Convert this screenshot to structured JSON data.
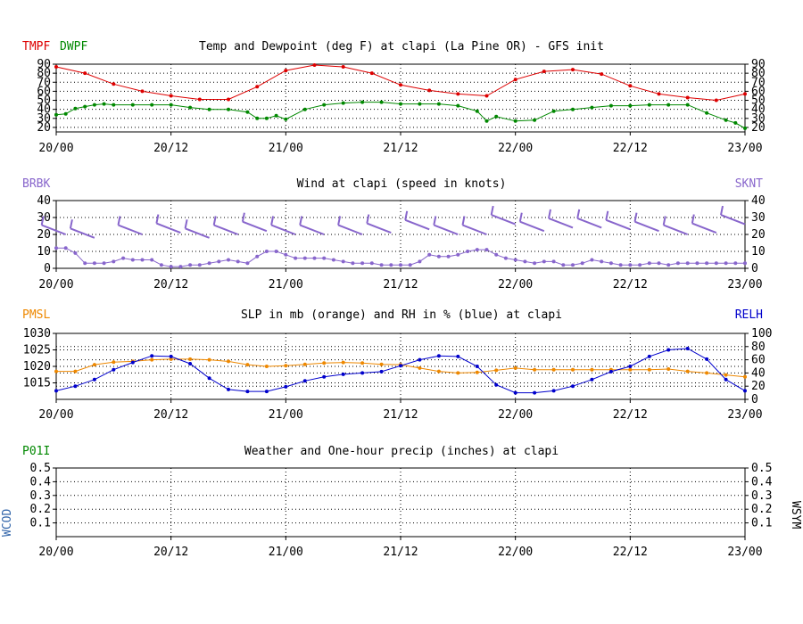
{
  "chart_data": [
    {
      "type": "line",
      "title": "Temp and Dewpoint (deg F) at clapi (La Pine OR) - GFS init",
      "left_labels": [
        {
          "text": "TMPF",
          "color": "#dd0000"
        },
        {
          "text": "DWPF",
          "color": "#008800"
        }
      ],
      "right_label": "",
      "ylim": [
        15,
        90
      ],
      "yticks": [
        20,
        30,
        40,
        50,
        60,
        70,
        80,
        90
      ],
      "yticks_right": [
        20,
        30,
        40,
        50,
        60,
        70,
        80,
        90
      ],
      "xlim": [
        0,
        72
      ],
      "xticks": [
        "20/00",
        "20/12",
        "21/00",
        "21/12",
        "22/00",
        "22/12",
        "23/00"
      ],
      "grid": true,
      "series": [
        {
          "name": "TMPF",
          "color": "#dd0000",
          "marker": "dot",
          "x": [
            0,
            3,
            6,
            9,
            12,
            15,
            18,
            21,
            24,
            27,
            30,
            33,
            36,
            39,
            42,
            45,
            48,
            51,
            54,
            57,
            60,
            63,
            66,
            69,
            72
          ],
          "y": [
            87,
            80,
            68,
            60,
            55,
            51,
            51,
            65,
            83,
            89,
            87,
            80,
            67,
            61,
            57,
            55,
            73,
            82,
            84,
            79,
            66,
            57,
            53,
            50,
            57
          ]
        },
        {
          "name": "DWPF",
          "color": "#008800",
          "marker": "dot",
          "x": [
            0,
            1,
            2,
            3,
            4,
            5,
            6,
            8,
            10,
            12,
            14,
            16,
            18,
            20,
            21,
            22,
            23,
            24,
            26,
            28,
            30,
            32,
            34,
            36,
            38,
            40,
            42,
            44,
            45,
            46,
            48,
            50,
            52,
            54,
            56,
            58,
            60,
            62,
            64,
            66,
            68,
            70,
            71,
            72
          ],
          "y": [
            34,
            35,
            41,
            43,
            45,
            46,
            45,
            45,
            45,
            45,
            42,
            40,
            40,
            37,
            30,
            30,
            33,
            29,
            40,
            45,
            47,
            48,
            48,
            46,
            46,
            46,
            44,
            38,
            27,
            32,
            27,
            28,
            38,
            40,
            42,
            44,
            44,
            45,
            45,
            45,
            36,
            28,
            25,
            19
          ]
        }
      ]
    },
    {
      "type": "line",
      "title": "Wind at  clapi (speed in knots)",
      "left_labels": [
        {
          "text": "BRBK",
          "color": "#8866cc"
        }
      ],
      "right_label": "SKNT",
      "right_color": "#8866cc",
      "ylim": [
        0,
        40
      ],
      "yticks": [
        0,
        10,
        20,
        30,
        40
      ],
      "yticks_right": [
        0,
        10,
        20,
        30,
        40
      ],
      "xlim": [
        0,
        72
      ],
      "xticks": [
        "20/00",
        "20/12",
        "21/00",
        "21/12",
        "22/00",
        "22/12",
        "23/00"
      ],
      "grid": true,
      "series": [
        {
          "name": "SKNT",
          "color": "#8866cc",
          "marker": "dot",
          "x": [
            0,
            1,
            2,
            3,
            4,
            5,
            6,
            7,
            8,
            9,
            10,
            11,
            12,
            13,
            14,
            15,
            16,
            17,
            18,
            19,
            20,
            21,
            22,
            23,
            24,
            25,
            26,
            27,
            28,
            29,
            30,
            31,
            32,
            33,
            34,
            35,
            36,
            37,
            38,
            39,
            40,
            41,
            42,
            43,
            44,
            45,
            46,
            47,
            48,
            49,
            50,
            51,
            52,
            53,
            54,
            55,
            56,
            57,
            58,
            59,
            60,
            61,
            62,
            63,
            64,
            65,
            66,
            67,
            68,
            69,
            70,
            71,
            72
          ],
          "y": [
            12,
            12,
            9,
            3,
            3,
            3,
            4,
            6,
            5,
            5,
            5,
            2,
            1,
            1,
            2,
            2,
            3,
            4,
            5,
            4,
            3,
            7,
            10,
            10,
            8,
            6,
            6,
            6,
            6,
            5,
            4,
            3,
            3,
            3,
            2,
            2,
            2,
            2,
            4,
            8,
            7,
            7,
            8,
            10,
            11,
            11,
            8,
            6,
            5,
            4,
            3,
            4,
            4,
            2,
            2,
            3,
            5,
            4,
            3,
            2,
            2,
            2,
            3,
            3,
            2,
            3,
            3,
            3,
            3,
            3,
            3,
            3,
            3
          ]
        }
      ],
      "barbs": {
        "x": [
          1,
          4,
          9,
          13,
          16,
          19,
          22,
          25,
          28,
          32,
          35,
          39,
          42,
          45,
          48,
          51,
          54,
          57,
          60,
          63,
          66,
          69,
          72
        ],
        "speed": [
          20,
          18,
          20,
          21,
          18,
          20,
          22,
          20,
          20,
          20,
          21,
          23,
          20,
          20,
          26,
          22,
          24,
          24,
          23,
          22,
          20,
          21,
          26
        ]
      }
    },
    {
      "type": "line",
      "title": "SLP in mb (orange) and RH in % (blue) at  clapi",
      "left_labels": [
        {
          "text": "PMSL",
          "color": "#ee8800"
        }
      ],
      "right_label": "RELH",
      "right_color": "#0000cc",
      "ylim": [
        1010,
        1030
      ],
      "yticks": [
        1015,
        1020,
        1025,
        1030
      ],
      "ylim_right": [
        0,
        100
      ],
      "yticks_right": [
        0,
        20,
        40,
        60,
        80,
        100
      ],
      "xlim": [
        0,
        72
      ],
      "xticks": [
        "20/00",
        "20/12",
        "21/00",
        "21/12",
        "22/00",
        "22/12",
        "23/00"
      ],
      "grid": true,
      "series": [
        {
          "name": "PMSL",
          "color": "#ee8800",
          "marker": "dot",
          "axis": "left",
          "x": [
            0,
            2,
            4,
            6,
            8,
            10,
            12,
            14,
            16,
            18,
            20,
            22,
            24,
            26,
            28,
            30,
            32,
            34,
            36,
            38,
            40,
            42,
            44,
            46,
            48,
            50,
            52,
            54,
            56,
            58,
            60,
            62,
            64,
            66,
            68,
            70,
            72
          ],
          "y": [
            1018.5,
            1018.5,
            1020.5,
            1021.3,
            1021.5,
            1022,
            1022.2,
            1022.2,
            1022,
            1021.5,
            1020.5,
            1020,
            1020.2,
            1020.6,
            1021,
            1021.2,
            1021,
            1020.6,
            1020.5,
            1019.5,
            1018.5,
            1018,
            1018.2,
            1018.8,
            1019.5,
            1019,
            1019,
            1019,
            1019,
            1019,
            1019,
            1019,
            1019.2,
            1018.5,
            1018,
            1017.4,
            1016.8
          ]
        },
        {
          "name": "RELH",
          "color": "#0000cc",
          "marker": "dot",
          "axis": "right",
          "x": [
            0,
            2,
            4,
            6,
            8,
            10,
            12,
            14,
            16,
            18,
            20,
            22,
            24,
            26,
            28,
            30,
            32,
            34,
            36,
            38,
            40,
            42,
            44,
            46,
            48,
            50,
            52,
            54,
            56,
            58,
            60,
            62,
            64,
            66,
            68,
            70,
            72
          ],
          "y": [
            13,
            20,
            30,
            45,
            56,
            66,
            65,
            54,
            32,
            15,
            12,
            12,
            19,
            28,
            34,
            38,
            40,
            42,
            51,
            60,
            66,
            65,
            50,
            22,
            10,
            10,
            13,
            20,
            30,
            42,
            50,
            65,
            75,
            77,
            61,
            30,
            13
          ]
        }
      ]
    },
    {
      "type": "line",
      "title": "Weather and One-hour precip (inches) at  clapi",
      "left_labels": [
        {
          "text": "P01I",
          "color": "#008800"
        }
      ],
      "right_label": "",
      "side_left": "WCOD",
      "side_right": "WSYM",
      "ylim": [
        0,
        0.5
      ],
      "yticks": [
        0.1,
        0.2,
        0.3,
        0.4,
        0.5
      ],
      "yticks_right": [
        0.1,
        0.2,
        0.3,
        0.4,
        0.5
      ],
      "xlim": [
        0,
        72
      ],
      "xticks": [
        "20/00",
        "20/12",
        "21/00",
        "21/12",
        "22/00",
        "22/12",
        "23/00"
      ],
      "grid": true,
      "series": []
    }
  ]
}
